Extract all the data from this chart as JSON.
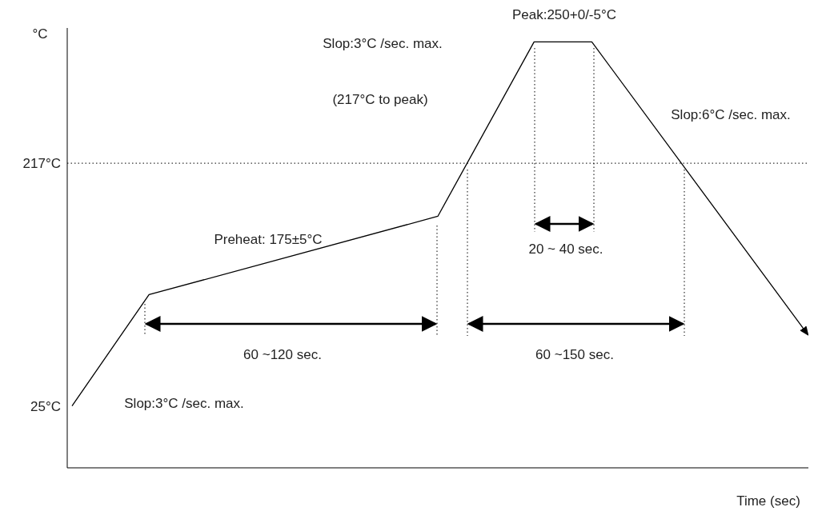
{
  "chart_data": {
    "type": "line",
    "xlabel": "Time (sec)",
    "ylabel": "°C",
    "categories": [
      null,
      null,
      null,
      null,
      null,
      null,
      null,
      null,
      null,
      null,
      null,
      null,
      null,
      null,
      null,
      null,
      null,
      null,
      null,
      null,
      null,
      null,
      null,
      null,
      null,
      null,
      null,
      null,
      null,
      null,
      null,
      null,
      null,
      null,
      null,
      null,
      null,
      null,
      null,
      null,
      null,
      null,
      null,
      null,
      null,
      null,
      null,
      null,
      null,
      null,
      null,
      null,
      null,
      null,
      null,
      null,
      null,
      null,
      null,
      null,
      null,
      null,
      null,
      null,
      null,
      null,
      null,
      null,
      null,
      null,
      null,
      null,
      null,
      null,
      null,
      null,
      null
    ],
    "series": [
      {
        "color": "#000000",
        "values": [
          25,
          null,
          null,
          null,
          null,
          null,
          null,
          null,
          113,
          null,
          null,
          null,
          null,
          null,
          null,
          null,
          null,
          null,
          null,
          null,
          null,
          null,
          null,
          null,
          null,
          null,
          null,
          null,
          null,
          null,
          null,
          null,
          null,
          null,
          null,
          null,
          null,
          null,
          175,
          null,
          null,
          null,
          null,
          null,
          null,
          null,
          null,
          null,
          313,
          null,
          null,
          null,
          null,
          null,
          313,
          null,
          null,
          null,
          null,
          null,
          null,
          null,
          null,
          null,
          null,
          null,
          null,
          null,
          null,
          null,
          null,
          null,
          null,
          null,
          null,
          null,
          86
        ]
      }
    ],
    "ylim": [
      -24,
      324
    ],
    "yticks": [
      {
        "value": 25,
        "label": "25°C"
      },
      {
        "value": 217,
        "label": "217°C"
      }
    ],
    "tick_labels": "y",
    "grid": false,
    "legend": false,
    "marker": "none",
    "line_style": "solid",
    "ref_lines": [
      {
        "axis": "y",
        "value": 217,
        "color": "#000000",
        "line_style": "dotted"
      }
    ],
    "annotations": [
      "Peak:250+0/-5°C",
      "Slop:3°C /sec. max.",
      "(217°C to peak)",
      "Slop:6°C /sec. max.",
      "Preheat: 175±5°C",
      "20 ~ 40 sec.",
      "60 ~120 sec.",
      "60 ~150 sec.",
      "Slop:3°C /sec. max."
    ]
  }
}
